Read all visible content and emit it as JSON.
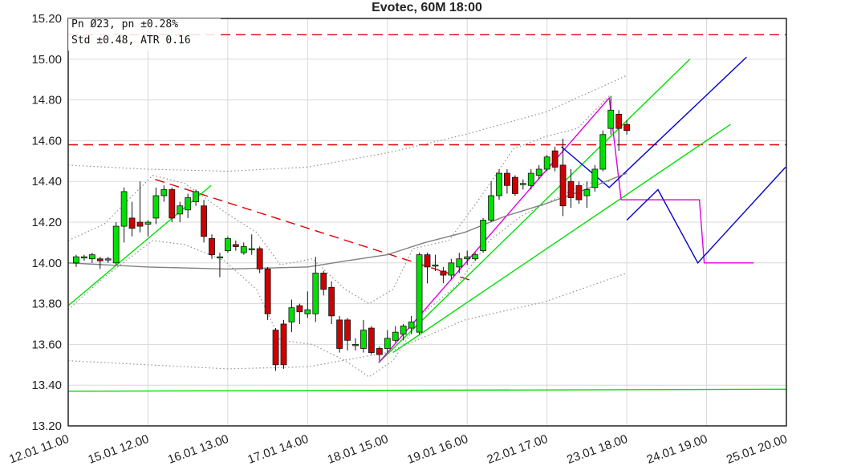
{
  "chart_data": {
    "type": "candlestick",
    "title": "Evotec, 60M 18:00",
    "annotations": [
      "Pn  Ø23, pn ±0.28%",
      "Std ±0.48, ATR 0.16"
    ],
    "xlim": [
      0,
      90
    ],
    "ylim": [
      13.2,
      15.2
    ],
    "grid": true,
    "up_color": "#00e000",
    "down_color": "#d00000",
    "xticks": [
      {
        "value": 0,
        "label": "12.01 11.00"
      },
      {
        "value": 10,
        "label": "15.01 12.00"
      },
      {
        "value": 20,
        "label": "16.01 13.00"
      },
      {
        "value": 30,
        "label": "17.01 14.00"
      },
      {
        "value": 40,
        "label": "18.01 15.00"
      },
      {
        "value": 50,
        "label": "19.01 16.00"
      },
      {
        "value": 60,
        "label": "22.01 17.00"
      },
      {
        "value": 70,
        "label": "23.01 18.00"
      },
      {
        "value": 80,
        "label": "24.01 19.00"
      },
      {
        "value": 90,
        "label": "25.01 20.00"
      }
    ],
    "yticks": [
      {
        "value": 13.2,
        "label": "13.20"
      },
      {
        "value": 13.4,
        "label": "13.40"
      },
      {
        "value": 13.6,
        "label": "13.60"
      },
      {
        "value": 13.8,
        "label": "13.80"
      },
      {
        "value": 14,
        "label": "14.00"
      },
      {
        "value": 14.2,
        "label": "14.20"
      },
      {
        "value": 14.4,
        "label": "14.40"
      },
      {
        "value": 14.6,
        "label": "14.60"
      },
      {
        "value": 14.8,
        "label": "14.80"
      },
      {
        "value": 15,
        "label": "15.00"
      },
      {
        "value": 15.2,
        "label": "15.20"
      }
    ],
    "x": [
      1,
      2,
      3,
      4,
      5,
      6,
      7,
      8,
      9,
      10,
      11,
      12,
      13,
      14,
      15,
      16,
      17,
      18,
      19,
      20,
      21,
      22,
      23,
      24,
      25,
      26,
      27,
      28,
      29,
      30,
      31,
      32,
      33,
      34,
      35,
      36,
      37,
      38,
      39,
      40,
      41,
      42,
      43,
      44,
      45,
      46,
      47,
      48,
      49,
      50,
      51,
      52,
      53,
      54,
      55,
      56,
      57,
      58,
      59,
      60,
      61,
      62,
      63,
      64,
      65,
      66,
      67,
      68,
      69,
      70
    ],
    "open": [
      14.0,
      14.03,
      14.02,
      14.02,
      14.02,
      14.0,
      14.18,
      14.22,
      14.2,
      14.19,
      14.22,
      14.33,
      14.36,
      14.24,
      14.26,
      14.3,
      14.28,
      14.12,
      14.03,
      14.06,
      14.09,
      14.05,
      14.07,
      14.07,
      13.97,
      13.67,
      13.7,
      13.71,
      13.79,
      13.75,
      13.75,
      13.95,
      13.88,
      13.72,
      13.72,
      13.6,
      13.58,
      13.68,
      13.58,
      13.58,
      13.62,
      13.65,
      13.68,
      13.66,
      14.04,
      13.99,
      13.96,
      13.94,
      13.98,
      14.02,
      14.02,
      14.06,
      14.21,
      14.33,
      14.44,
      14.42,
      14.39,
      14.38,
      14.43,
      14.46,
      14.55,
      14.48,
      14.4,
      14.38,
      14.33,
      14.37,
      14.46,
      14.66,
      14.73,
      14.68
    ],
    "high": [
      14.04,
      14.04,
      14.05,
      14.03,
      14.03,
      14.2,
      14.37,
      14.3,
      14.4,
      14.21,
      14.37,
      14.38,
      14.37,
      14.3,
      14.34,
      14.36,
      14.31,
      14.14,
      14.05,
      14.13,
      14.11,
      14.1,
      14.14,
      14.08,
      13.98,
      13.68,
      13.72,
      13.82,
      13.8,
      13.86,
      14.03,
      13.96,
      13.91,
      13.74,
      13.73,
      13.63,
      13.72,
      13.69,
      13.59,
      13.67,
      13.69,
      13.7,
      13.74,
      14.05,
      14.05,
      14.04,
      13.98,
      14.02,
      14.05,
      14.06,
      14.05,
      14.22,
      14.4,
      14.46,
      14.46,
      14.43,
      14.41,
      14.46,
      14.48,
      14.53,
      14.57,
      14.61,
      14.46,
      14.4,
      14.4,
      14.48,
      14.65,
      14.82,
      14.75,
      14.7
    ],
    "low": [
      13.98,
      14.01,
      14.0,
      13.97,
      14.0,
      13.99,
      14.1,
      14.13,
      14.15,
      14.13,
      14.19,
      14.3,
      14.2,
      14.2,
      14.22,
      14.28,
      14.1,
      14.02,
      13.93,
      14.05,
      14.06,
      14.04,
      14.04,
      13.95,
      13.72,
      13.47,
      13.48,
      13.66,
      13.7,
      13.73,
      13.71,
      13.84,
      13.7,
      13.56,
      13.57,
      13.57,
      13.56,
      13.55,
      13.52,
      13.56,
      13.61,
      13.62,
      13.65,
      13.65,
      13.9,
      13.96,
      13.9,
      13.92,
      13.95,
      13.99,
      14.01,
      14.05,
      14.2,
      14.31,
      14.34,
      14.33,
      14.36,
      14.36,
      14.41,
      14.45,
      14.45,
      14.23,
      14.27,
      14.29,
      14.27,
      14.35,
      14.45,
      14.63,
      14.55,
      14.63
    ],
    "close": [
      14.03,
      14.03,
      14.04,
      14.01,
      14.02,
      14.18,
      14.35,
      14.17,
      14.18,
      14.2,
      14.33,
      14.36,
      14.22,
      14.28,
      14.32,
      14.35,
      14.13,
      14.04,
      14.03,
      14.12,
      14.08,
      14.08,
      14.07,
      13.97,
      13.75,
      13.5,
      13.5,
      13.78,
      13.76,
      13.77,
      13.95,
      13.87,
      13.74,
      13.58,
      13.62,
      13.6,
      13.67,
      13.56,
      13.55,
      13.63,
      13.66,
      13.69,
      13.71,
      14.04,
      13.98,
      13.99,
      13.94,
      14.0,
      14.02,
      14.03,
      14.04,
      14.21,
      14.33,
      14.44,
      14.38,
      14.34,
      14.39,
      14.44,
      14.46,
      14.52,
      14.47,
      14.28,
      14.32,
      14.31,
      14.36,
      14.46,
      14.63,
      14.75,
      14.66,
      14.65
    ],
    "lines": [
      {
        "color": "#e00000",
        "dash": true,
        "x": [
          0,
          90
        ],
        "y": [
          15.12,
          15.12
        ]
      },
      {
        "color": "#e00000",
        "dash": true,
        "x": [
          0,
          90
        ],
        "y": [
          14.58,
          14.58
        ]
      },
      {
        "color": "#00e000",
        "dash": false,
        "x": [
          0,
          90
        ],
        "y": [
          13.37,
          13.38
        ]
      },
      {
        "color": "#e00000",
        "dash": true,
        "x": [
          10.9,
          50.8
        ],
        "y": [
          14.41,
          13.91
        ]
      },
      {
        "color": "#00e000",
        "dash": false,
        "x": [
          0,
          17.9
        ],
        "y": [
          13.79,
          14.38
        ]
      },
      {
        "color": "#00e000",
        "dash": false,
        "x": [
          38.9,
          77.9
        ],
        "y": [
          13.51,
          15.0
        ]
      },
      {
        "color": "#00e000",
        "dash": false,
        "x": [
          40.7,
          83
        ],
        "y": [
          13.56,
          14.68
        ]
      },
      {
        "color": "#e000e0",
        "dash": false,
        "x": [
          38.9,
          67.8,
          69.3,
          79.1,
          79.7,
          85.9
        ],
        "y": [
          13.51,
          14.81,
          14.31,
          14.31,
          14.0,
          14.0
        ]
      },
      {
        "color": "#0000d0",
        "dash": false,
        "x": [
          61.8,
          67.8,
          85
        ],
        "y": [
          14.57,
          14.37,
          15.01
        ]
      },
      {
        "color": "#0000d0",
        "dash": false,
        "x": [
          70,
          73.9,
          78.9,
          89.9
        ],
        "y": [
          14.21,
          14.36,
          14.0,
          14.47
        ]
      },
      {
        "color": "#808080",
        "dash": false,
        "x": [
          0,
          10,
          20,
          30,
          34.8,
          40,
          44.7,
          49.7,
          54.8,
          59.8,
          64.8,
          70
        ],
        "y": [
          14.0,
          13.98,
          13.97,
          13.98,
          14.01,
          14.04,
          14.1,
          14.15,
          14.23,
          14.29,
          14.36,
          14.44
        ]
      },
      {
        "color": "#909090",
        "dash": "dot",
        "x": [
          0,
          10,
          20,
          30,
          40,
          49.7,
          59.8,
          70
        ],
        "y": [
          14.48,
          14.46,
          14.45,
          14.47,
          14.54,
          14.63,
          14.74,
          14.92
        ]
      },
      {
        "color": "#909090",
        "dash": "dot",
        "x": [
          0,
          10,
          20,
          30,
          40,
          49.7,
          59.8,
          70
        ],
        "y": [
          13.52,
          13.5,
          13.48,
          13.49,
          13.56,
          13.72,
          13.81,
          13.95
        ]
      },
      {
        "color": "#909090",
        "dash": "dot",
        "x": [
          0,
          4.5,
          10.6,
          14.6,
          19.6,
          23.6,
          26.6,
          30.6,
          34.7,
          37.7,
          40.7,
          43.2,
          47.7,
          51.8,
          55.8,
          59.8,
          63.8,
          67.8
        ],
        "y": [
          14.11,
          14.19,
          14.43,
          14.39,
          14.25,
          14.15,
          13.99,
          14.02,
          13.87,
          13.8,
          13.87,
          14.07,
          14.11,
          14.33,
          14.56,
          14.62,
          14.66,
          14.82
        ]
      },
      {
        "color": "#909090",
        "dash": "dot",
        "x": [
          0,
          4.5,
          10.6,
          14.6,
          19.6,
          23.6,
          26.6,
          30.6,
          34.7,
          37.7,
          40.7,
          44.7,
          48.7,
          52.8,
          56.8,
          60.8,
          64.8,
          67.8
        ],
        "y": [
          13.77,
          13.93,
          14.11,
          14.09,
          14.01,
          13.87,
          13.62,
          13.6,
          13.52,
          13.44,
          13.52,
          13.76,
          13.89,
          14.11,
          14.23,
          14.31,
          14.39,
          14.4
        ]
      }
    ]
  }
}
